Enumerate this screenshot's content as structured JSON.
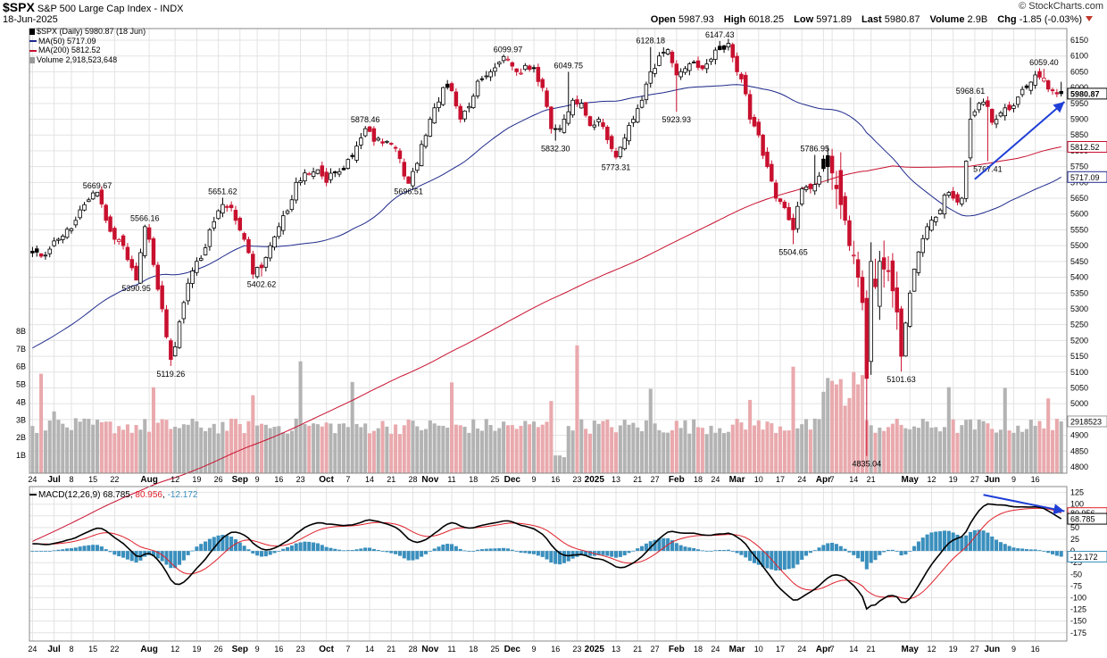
{
  "header": {
    "symbol": "$SPX",
    "name": "S&P 500 Large Cap Index",
    "exchange": "INDX",
    "date": "18-Jun-2025",
    "brand": "© StockCharts.com",
    "open_label": "Open",
    "open": "5987.93",
    "high_label": "High",
    "high": "6018.25",
    "low_label": "Low",
    "low": "5971.89",
    "last_label": "Last",
    "last": "5980.87",
    "volume_label": "Volume",
    "volume": "2.9B",
    "chg_label": "Chg",
    "chg": "-1.85 (-0.03%)"
  },
  "legend": {
    "price": "$SPX (Daily) 5980.87 (18 Jun)",
    "ma50": "MA(50) 5717.09",
    "ma200": "MA(200) 5812.52",
    "volume": "Volume 2,918,523,648"
  },
  "macd_legend": {
    "label": "MACD(12,26,9)",
    "macd": "68.785",
    "signal": "80.956",
    "hist": "-12.172"
  },
  "colors": {
    "up": "#000000",
    "down": "#c8102e",
    "ma50": "#1f2a8c",
    "ma200": "#c8102e",
    "vol_up": "#b3b3b3",
    "vol_down": "#e9a9ad",
    "macd_line": "#000000",
    "signal_line": "#e0202a",
    "histogram": "#3a8fbd",
    "arrow": "#1f3fd6",
    "grid": "#e3e3e3"
  },
  "chart_data": {
    "type": "candlestick",
    "title": "$SPX S&P 500 Large Cap Index",
    "period": "Daily",
    "price_axis": {
      "ylim": [
        4800,
        6150
      ],
      "ticks": [
        4800,
        4850,
        4900,
        4950,
        5000,
        5050,
        5100,
        5150,
        5200,
        5250,
        5300,
        5350,
        5400,
        5450,
        5500,
        5550,
        5600,
        5650,
        5700,
        5750,
        5800,
        5850,
        5900,
        5950,
        6000,
        6050,
        6100,
        6150
      ],
      "scale": "linear",
      "side": "right"
    },
    "volume_axis": {
      "ticks": [
        "1B",
        "2B",
        "3B",
        "4B",
        "5B",
        "6B",
        "7B",
        "8B"
      ],
      "ylim_billions": [
        0,
        8.8
      ],
      "current_label": "2918523"
    },
    "macd_axis": {
      "ticks": [
        125,
        100,
        75,
        50,
        25,
        0,
        -25,
        -50,
        -75,
        -100,
        -125,
        -150,
        -175
      ],
      "ylim": [
        -185,
        130
      ]
    },
    "x_tick_labels": [
      {
        "i": 0,
        "t": "24"
      },
      {
        "i": 5,
        "t": "Jul",
        "bold": true
      },
      {
        "i": 9,
        "t": "8"
      },
      {
        "i": 14,
        "t": "15"
      },
      {
        "i": 19,
        "t": "22"
      },
      {
        "i": 27,
        "t": "Aug",
        "bold": true
      },
      {
        "i": 33,
        "t": "12"
      },
      {
        "i": 38,
        "t": "19"
      },
      {
        "i": 43,
        "t": "26"
      },
      {
        "i": 48,
        "t": "Sep",
        "bold": true
      },
      {
        "i": 52,
        "t": "9"
      },
      {
        "i": 57,
        "t": "16"
      },
      {
        "i": 62,
        "t": "23"
      },
      {
        "i": 68,
        "t": "Oct",
        "bold": true
      },
      {
        "i": 73,
        "t": "7"
      },
      {
        "i": 78,
        "t": "14"
      },
      {
        "i": 83,
        "t": "21"
      },
      {
        "i": 88,
        "t": "28"
      },
      {
        "i": 92,
        "t": "Nov",
        "bold": true
      },
      {
        "i": 97,
        "t": "11"
      },
      {
        "i": 102,
        "t": "18"
      },
      {
        "i": 107,
        "t": "25"
      },
      {
        "i": 111,
        "t": "Dec",
        "bold": true
      },
      {
        "i": 116,
        "t": "9"
      },
      {
        "i": 121,
        "t": "16"
      },
      {
        "i": 126,
        "t": "23"
      },
      {
        "i": 130,
        "t": "2025",
        "bold": true
      },
      {
        "i": 135,
        "t": "13"
      },
      {
        "i": 140,
        "t": "21"
      },
      {
        "i": 144,
        "t": "27"
      },
      {
        "i": 149,
        "t": "Feb",
        "bold": true
      },
      {
        "i": 154,
        "t": "18"
      },
      {
        "i": 158,
        "t": "24"
      },
      {
        "i": 163,
        "t": "Mar",
        "bold": true
      },
      {
        "i": 168,
        "t": "10"
      },
      {
        "i": 173,
        "t": "17"
      },
      {
        "i": 178,
        "t": "24"
      },
      {
        "i": 183,
        "t": "Apr",
        "bold": true
      },
      {
        "i": 185,
        "t": "7"
      },
      {
        "i": 190,
        "t": "14"
      },
      {
        "i": 194,
        "t": "21"
      },
      {
        "i": 203,
        "t": "May",
        "bold": true
      },
      {
        "i": 208,
        "t": "12"
      },
      {
        "i": 213,
        "t": "19"
      },
      {
        "i": 218,
        "t": "27"
      },
      {
        "i": 222,
        "t": "Jun",
        "bold": true
      },
      {
        "i": 227,
        "t": "9"
      },
      {
        "i": 232,
        "t": "16"
      }
    ],
    "price_anchors": [
      [
        0,
        5477
      ],
      [
        3,
        5470
      ],
      [
        7,
        5530
      ],
      [
        10,
        5580
      ],
      [
        13,
        5645
      ],
      [
        15,
        5669
      ],
      [
        17,
        5580
      ],
      [
        19,
        5520
      ],
      [
        21,
        5500
      ],
      [
        23,
        5430
      ],
      [
        24,
        5391
      ],
      [
        26,
        5560
      ],
      [
        27,
        5520
      ],
      [
        28,
        5440
      ],
      [
        30,
        5300
      ],
      [
        32,
        5140
      ],
      [
        33,
        5180
      ],
      [
        35,
        5320
      ],
      [
        37,
        5420
      ],
      [
        39,
        5460
      ],
      [
        41,
        5550
      ],
      [
        44,
        5630
      ],
      [
        46,
        5620
      ],
      [
        49,
        5520
      ],
      [
        51,
        5410
      ],
      [
        53,
        5430
      ],
      [
        55,
        5500
      ],
      [
        57,
        5560
      ],
      [
        59,
        5610
      ],
      [
        61,
        5700
      ],
      [
        63,
        5730
      ],
      [
        66,
        5740
      ],
      [
        68,
        5700
      ],
      [
        70,
        5730
      ],
      [
        72,
        5740
      ],
      [
        75,
        5815
      ],
      [
        77,
        5870
      ],
      [
        79,
        5830
      ],
      [
        82,
        5830
      ],
      [
        84,
        5810
      ],
      [
        86,
        5720
      ],
      [
        87,
        5697
      ],
      [
        89,
        5760
      ],
      [
        90,
        5820
      ],
      [
        92,
        5900
      ],
      [
        95,
        6000
      ],
      [
        97,
        5990
      ],
      [
        99,
        5900
      ],
      [
        101,
        5940
      ],
      [
        103,
        6020
      ],
      [
        106,
        6050
      ],
      [
        108,
        6080
      ],
      [
        110,
        6090
      ],
      [
        112,
        6050
      ],
      [
        114,
        6070
      ],
      [
        116,
        6060
      ],
      [
        118,
        6000
      ],
      [
        120,
        5870
      ],
      [
        121,
        5870
      ],
      [
        123,
        5900
      ],
      [
        125,
        5960
      ],
      [
        127,
        5950
      ],
      [
        129,
        5880
      ],
      [
        131,
        5900
      ],
      [
        133,
        5835
      ],
      [
        135,
        5780
      ],
      [
        137,
        5840
      ],
      [
        139,
        5900
      ],
      [
        141,
        5960
      ],
      [
        143,
        6050
      ],
      [
        145,
        6100
      ],
      [
        147,
        6120
      ],
      [
        149,
        6040
      ],
      [
        151,
        6060
      ],
      [
        153,
        6080
      ],
      [
        155,
        6060
      ],
      [
        157,
        6090
      ],
      [
        159,
        6120
      ],
      [
        161,
        6140
      ],
      [
        163,
        6050
      ],
      [
        165,
        5980
      ],
      [
        166,
        5900
      ],
      [
        168,
        5850
      ],
      [
        170,
        5750
      ],
      [
        172,
        5650
      ],
      [
        174,
        5620
      ],
      [
        176,
        5550
      ],
      [
        178,
        5680
      ],
      [
        180,
        5680
      ],
      [
        182,
        5720
      ],
      [
        184,
        5750
      ],
      [
        186,
        5680
      ],
      [
        188,
        5580
      ],
      [
        189,
        5500
      ],
      [
        190,
        5470
      ],
      [
        191,
        5400
      ],
      [
        192,
        5320
      ],
      [
        193,
        5080
      ],
      [
        194,
        5450
      ],
      [
        195,
        5370
      ],
      [
        196,
        5450
      ],
      [
        198,
        5420
      ],
      [
        200,
        5290
      ],
      [
        201,
        5150
      ],
      [
        203,
        5350
      ],
      [
        205,
        5480
      ],
      [
        207,
        5560
      ],
      [
        209,
        5590
      ],
      [
        211,
        5660
      ],
      [
        213,
        5650
      ],
      [
        215,
        5650
      ],
      [
        217,
        5900
      ],
      [
        219,
        5950
      ],
      [
        221,
        5940
      ],
      [
        222,
        5890
      ],
      [
        224,
        5920
      ],
      [
        226,
        5930
      ],
      [
        228,
        5970
      ],
      [
        230,
        6000
      ],
      [
        232,
        6040
      ],
      [
        234,
        6030
      ],
      [
        236,
        5990
      ],
      [
        238,
        5981
      ]
    ],
    "annotations": [
      {
        "i": 15,
        "price": 5669.67,
        "text": "5669.67",
        "pos": "above"
      },
      {
        "i": 24,
        "price": 5390.95,
        "text": "5390.95",
        "pos": "below"
      },
      {
        "i": 26,
        "price": 5566.16,
        "text": "5566.16",
        "pos": "above"
      },
      {
        "i": 32,
        "price": 5119.26,
        "text": "5119.26",
        "pos": "below"
      },
      {
        "i": 44,
        "price": 5651.62,
        "text": "5651.62",
        "pos": "above"
      },
      {
        "i": 53,
        "price": 5402.62,
        "text": "5402.62",
        "pos": "below"
      },
      {
        "i": 77,
        "price": 5878.46,
        "text": "5878.46",
        "pos": "above"
      },
      {
        "i": 87,
        "price": 5696.51,
        "text": "5696.51",
        "pos": "below"
      },
      {
        "i": 110,
        "price": 6099.97,
        "text": "6099.97",
        "pos": "above"
      },
      {
        "i": 121,
        "price": 5832.3,
        "text": "5832.30",
        "pos": "below"
      },
      {
        "i": 124,
        "price": 6049.75,
        "text": "6049.75",
        "pos": "above"
      },
      {
        "i": 135,
        "price": 5773.31,
        "text": "5773.31",
        "pos": "below"
      },
      {
        "i": 143,
        "price": 6128.18,
        "text": "6128.18",
        "pos": "above"
      },
      {
        "i": 149,
        "price": 5923.93,
        "text": "5923.93",
        "pos": "below"
      },
      {
        "i": 159,
        "price": 6147.43,
        "text": "6147.43",
        "pos": "above"
      },
      {
        "i": 176,
        "price": 5504.65,
        "text": "5504.65",
        "pos": "below"
      },
      {
        "i": 181,
        "price": 5786.95,
        "text": "5786.95",
        "pos": "above"
      },
      {
        "i": 193,
        "price": 4835.04,
        "text": "4835.04",
        "pos": "below"
      },
      {
        "i": 201,
        "price": 5101.63,
        "text": "5101.63",
        "pos": "below"
      },
      {
        "i": 217,
        "price": 5968.61,
        "text": "5968.61",
        "pos": "above"
      },
      {
        "i": 221,
        "price": 5767.41,
        "text": "5767.41",
        "pos": "below"
      },
      {
        "i": 234,
        "price": 6059.4,
        "text": "6059.40",
        "pos": "above"
      }
    ],
    "last_values": {
      "price": 5980.87,
      "ma50": 5717.09,
      "ma200": 5812.52,
      "macd": 68.785,
      "signal": 80.956,
      "histogram": -12.172
    },
    "trendlines": [
      {
        "panel": "price",
        "from": {
          "i": 218,
          "value": 5710
        },
        "to": {
          "i": 240,
          "value": 5955
        }
      },
      {
        "panel": "macd",
        "from": {
          "i": 220,
          "value": 120
        },
        "to": {
          "i": 240,
          "value": 85
        }
      }
    ],
    "n_bars": 239
  }
}
